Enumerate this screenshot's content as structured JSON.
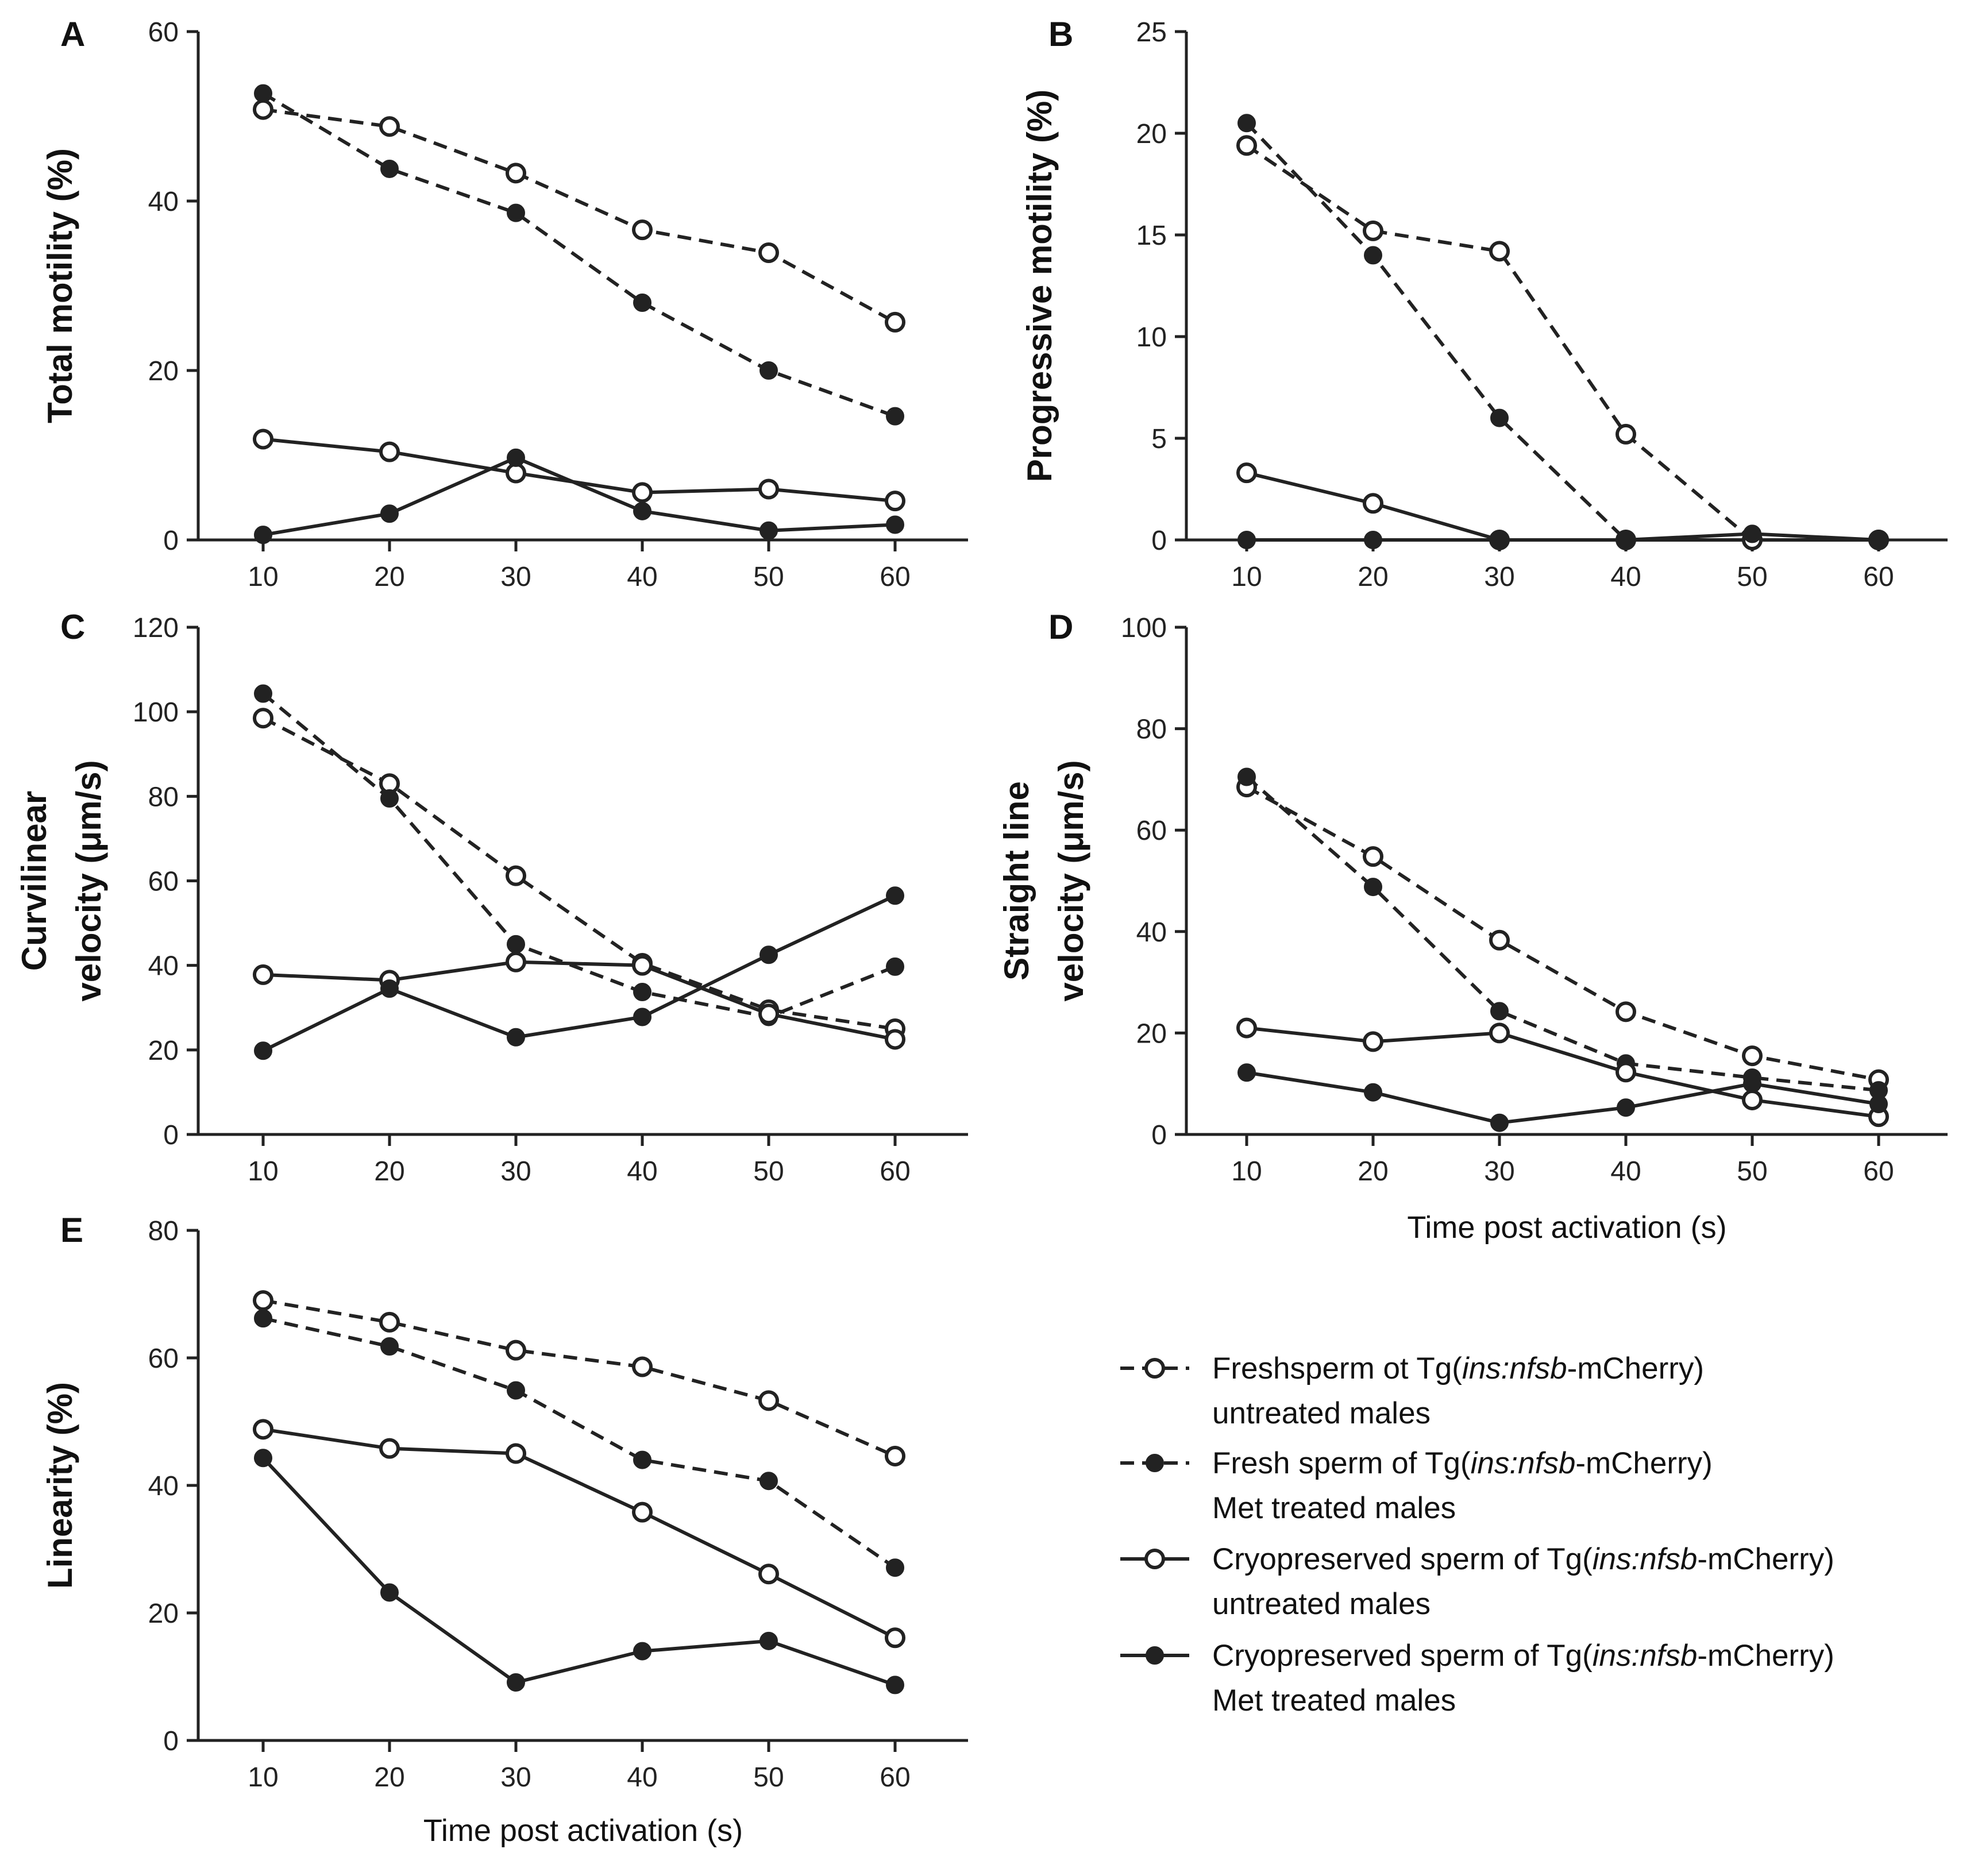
{
  "legend": {
    "entries": [
      {
        "style": "dashed",
        "marker": "open",
        "line1_pre": "Freshsperm ot Tg(",
        "line1_it": "ins:nfsb",
        "line1_post": "-mCherry)",
        "line2": "untreated males"
      },
      {
        "style": "dashed",
        "marker": "filled",
        "line1_pre": "Fresh sperm of Tg(",
        "line1_it": "ins:nfsb",
        "line1_post": "-mCherry)",
        "line2": "Met treated males"
      },
      {
        "style": "solid",
        "marker": "open",
        "line1_pre": "Cryopreserved sperm of Tg(",
        "line1_it": "ins:nfsb",
        "line1_post": "-mCherry)",
        "line2": "untreated males"
      },
      {
        "style": "solid",
        "marker": "filled",
        "line1_pre": "Cryopreserved sperm of Tg(",
        "line1_it": "ins:nfsb",
        "line1_post": "-mCherry)",
        "line2": "Met treated males"
      }
    ]
  },
  "colors": {
    "ink": "#222222",
    "background": "#ffffff"
  },
  "chart_data": [
    {
      "id": "A",
      "type": "line",
      "letter": "A",
      "ylabel_lines": [
        "Total motility (%)"
      ],
      "xlabel": "",
      "x": [
        10,
        20,
        30,
        40,
        50,
        60
      ],
      "xticks": [
        "10",
        "20",
        "30",
        "40",
        "50",
        "60"
      ],
      "ylim": [
        0,
        60
      ],
      "yticks": [
        0,
        20,
        40,
        60
      ],
      "series": [
        {
          "name": "Fresh untreated",
          "style": "dashed",
          "marker": "open",
          "values": [
            50.8,
            48.8,
            43.3,
            36.6,
            33.9,
            25.7
          ]
        },
        {
          "name": "Fresh Met treated",
          "style": "dashed",
          "marker": "filled",
          "values": [
            52.7,
            43.8,
            38.6,
            28.0,
            20.0,
            14.6
          ]
        },
        {
          "name": "Cryopreserved untreated",
          "style": "solid",
          "marker": "open",
          "values": [
            11.9,
            10.4,
            7.9,
            5.6,
            6.0,
            4.6
          ]
        },
        {
          "name": "Cryopreserved Met treated",
          "style": "solid",
          "marker": "filled",
          "values": [
            0.6,
            3.1,
            9.7,
            3.4,
            1.1,
            1.8
          ]
        }
      ]
    },
    {
      "id": "B",
      "type": "line",
      "letter": "B",
      "ylabel_lines": [
        "Progressive motility (%)"
      ],
      "xlabel": "",
      "x": [
        10,
        20,
        30,
        40,
        50,
        60
      ],
      "xticks": [
        "10",
        "20",
        "30",
        "40",
        "50",
        "60"
      ],
      "ylim": [
        0,
        25
      ],
      "yticks": [
        0,
        5,
        10,
        15,
        20,
        25
      ],
      "series": [
        {
          "name": "Fresh untreated",
          "style": "dashed",
          "marker": "open",
          "values": [
            19.4,
            15.2,
            14.2,
            5.2,
            0.0,
            0.0
          ]
        },
        {
          "name": "Fresh Met treated",
          "style": "dashed",
          "marker": "filled",
          "values": [
            20.5,
            14.0,
            6.0,
            0.0,
            0.0,
            0.0
          ]
        },
        {
          "name": "Cryopreserved untreated",
          "style": "solid",
          "marker": "open",
          "values": [
            3.3,
            1.8,
            0.0,
            0.0,
            0.0,
            0.0
          ]
        },
        {
          "name": "Cryopreserved Met treated",
          "style": "solid",
          "marker": "filled",
          "values": [
            0.0,
            0.0,
            0.0,
            0.0,
            0.3,
            0.0
          ]
        }
      ]
    },
    {
      "id": "C",
      "type": "line",
      "letter": "C",
      "ylabel_lines": [
        "Curvilinear",
        "velocity (μm/s)"
      ],
      "xlabel": "",
      "x": [
        10,
        20,
        30,
        40,
        50,
        60
      ],
      "xticks": [
        "10",
        "20",
        "30",
        "40",
        "50",
        "60"
      ],
      "ylim": [
        0,
        120
      ],
      "yticks": [
        0,
        20,
        40,
        60,
        80,
        100,
        120
      ],
      "series": [
        {
          "name": "Fresh untreated",
          "style": "dashed",
          "marker": "open",
          "values": [
            98.5,
            83.0,
            61.2,
            40.5,
            29.5,
            25.0
          ]
        },
        {
          "name": "Fresh Met treated",
          "style": "dashed",
          "marker": "filled",
          "values": [
            104.3,
            79.5,
            45.0,
            33.7,
            27.8,
            39.7
          ]
        },
        {
          "name": "Cryopreserved untreated",
          "style": "solid",
          "marker": "open",
          "values": [
            37.8,
            36.5,
            40.8,
            40.0,
            28.5,
            22.5
          ]
        },
        {
          "name": "Cryopreserved Met treated",
          "style": "solid",
          "marker": "filled",
          "values": [
            19.8,
            34.5,
            23.0,
            27.8,
            42.5,
            56.5
          ]
        }
      ]
    },
    {
      "id": "D",
      "type": "line",
      "letter": "D",
      "ylabel_lines": [
        "Straight line",
        "velocity (μm/s)"
      ],
      "xlabel": "Time post activation (s)",
      "x": [
        10,
        20,
        30,
        40,
        50,
        60
      ],
      "xticks": [
        "10",
        "20",
        "30",
        "40",
        "50",
        "60"
      ],
      "ylim": [
        0,
        100
      ],
      "yticks": [
        0,
        20,
        40,
        60,
        80,
        100
      ],
      "series": [
        {
          "name": "Fresh untreated",
          "style": "dashed",
          "marker": "open",
          "values": [
            68.5,
            54.8,
            38.3,
            24.2,
            15.5,
            10.8
          ]
        },
        {
          "name": "Fresh Met treated",
          "style": "dashed",
          "marker": "filled",
          "values": [
            70.5,
            48.8,
            24.3,
            14.0,
            11.2,
            8.7
          ]
        },
        {
          "name": "Cryopreserved untreated",
          "style": "solid",
          "marker": "open",
          "values": [
            21.0,
            18.3,
            20.0,
            12.3,
            6.8,
            3.5
          ]
        },
        {
          "name": "Cryopreserved Met treated",
          "style": "solid",
          "marker": "filled",
          "values": [
            12.2,
            8.3,
            2.3,
            5.3,
            10.0,
            6.0
          ]
        }
      ]
    },
    {
      "id": "E",
      "type": "line",
      "letter": "E",
      "ylabel_lines": [
        "Linearity (%)"
      ],
      "xlabel": "Time post activation (s)",
      "x": [
        10,
        20,
        30,
        40,
        50,
        60
      ],
      "xticks": [
        "10",
        "20",
        "30",
        "40",
        "50",
        "60"
      ],
      "ylim": [
        0,
        80
      ],
      "yticks": [
        0,
        20,
        40,
        60,
        80
      ],
      "series": [
        {
          "name": "Fresh untreated",
          "style": "dashed",
          "marker": "open",
          "values": [
            69.0,
            65.6,
            61.2,
            58.6,
            53.3,
            44.6
          ]
        },
        {
          "name": "Fresh Met treated",
          "style": "dashed",
          "marker": "filled",
          "values": [
            66.2,
            61.8,
            54.9,
            44.0,
            40.7,
            27.1
          ]
        },
        {
          "name": "Cryopreserved untreated",
          "style": "solid",
          "marker": "open",
          "values": [
            48.8,
            45.8,
            45.0,
            35.8,
            26.1,
            16.1
          ]
        },
        {
          "name": "Cryopreserved Met treated",
          "style": "solid",
          "marker": "filled",
          "values": [
            44.3,
            23.2,
            9.1,
            14.0,
            15.6,
            8.7
          ]
        }
      ]
    }
  ]
}
